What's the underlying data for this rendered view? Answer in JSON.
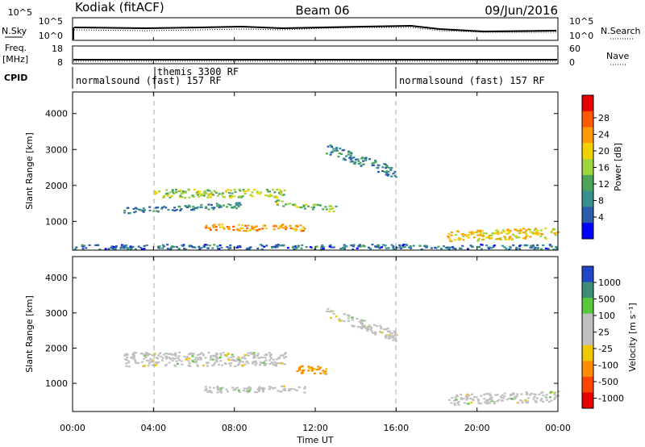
{
  "header": {
    "station": "Kodiak (fitACF)",
    "beam": "Beam 06",
    "date": "09/Jun/2016"
  },
  "panels": {
    "nsky_label": "N.Sky",
    "nsky_ticks": [
      "10^5",
      "10^0"
    ],
    "nsearch_label": "N.Search",
    "nsearch_ticks": [
      "10^5",
      "10^0"
    ],
    "freq_label": "Freq.",
    "freq_unit": "[MHz]",
    "freq_ticks": [
      "18",
      "8"
    ],
    "nave_label": "Nave",
    "nave_ticks": [
      "60",
      "0"
    ],
    "cpid_label": "CPID",
    "cpid_modes": [
      {
        "name": "normalsound (fast) 157 RF",
        "start": 0
      },
      {
        "name": "themis 3300 RF",
        "start": 4.1
      },
      {
        "name": "normalsound (fast) 157 RF",
        "start": 16
      }
    ]
  },
  "power_colorbar": {
    "label": "Power [dB]",
    "ticks": [
      "28",
      "24",
      "20",
      "16",
      "12",
      "8",
      "4"
    ],
    "colors": [
      "#e60000",
      "#ff5a00",
      "#ff9b00",
      "#f0d200",
      "#9fd53c",
      "#4aa55a",
      "#3a8f8f",
      "#2a5caa",
      "#0000ff"
    ]
  },
  "velocity_colorbar": {
    "label": "Velocity [m s⁻¹]",
    "ticks": [
      "1000",
      "500",
      "100",
      "25",
      "-25",
      "-100",
      "-500",
      "-1000"
    ],
    "colors": [
      "#2046c8",
      "#3c8c78",
      "#5ac83c",
      "#c0c0c0",
      "#c0c0c0",
      "#f0c800",
      "#ff8c00",
      "#ff4600",
      "#e60000"
    ]
  },
  "chart_data": {
    "type": "heatmap",
    "xlabel": "Time UT",
    "x_ticks": [
      "00:00",
      "04:00",
      "08:00",
      "12:00",
      "16:00",
      "20:00",
      "00:00"
    ],
    "xlim_hours": [
      0,
      24
    ],
    "ylabel": "Slant Range [km]",
    "y_ticks": [
      "1000",
      "2000",
      "3000",
      "4000"
    ],
    "ylim_km": [
      200,
      4600
    ],
    "power_echo_regions": [
      {
        "t0": 2.5,
        "t1": 8.5,
        "r_center": 1400,
        "r_halfwidth": 80,
        "r_slope": 25,
        "value_db": 8
      },
      {
        "t0": 4.0,
        "t1": 10.5,
        "r_center": 1800,
        "r_halfwidth": 120,
        "r_slope": 0,
        "value_db": 16
      },
      {
        "t0": 6.5,
        "t1": 11.5,
        "r_center": 850,
        "r_halfwidth": 90,
        "r_slope": 0,
        "value_db": 24
      },
      {
        "t0": 10.0,
        "t1": 13.0,
        "r_center": 1450,
        "r_halfwidth": 80,
        "r_slope": -60,
        "value_db": 14
      },
      {
        "t0": 12.5,
        "t1": 16.0,
        "r_center": 2700,
        "r_halfwidth": 150,
        "r_slope": -200,
        "value_db": 8
      },
      {
        "t0": 18.5,
        "t1": 24.0,
        "r_center": 650,
        "r_halfwidth": 150,
        "r_slope": 20,
        "value_db": 20
      },
      {
        "t0": 0.0,
        "t1": 24.0,
        "r_center": 300,
        "r_halfwidth": 80,
        "r_slope": 0,
        "value_db": 6
      }
    ],
    "velocity_echo_regions": [
      {
        "t0": 2.5,
        "t1": 10.5,
        "r_center": 1700,
        "r_halfwidth": 200,
        "r_slope": 0,
        "value_ms": 0
      },
      {
        "t0": 6.5,
        "t1": 11.5,
        "r_center": 850,
        "r_halfwidth": 90,
        "r_slope": 0,
        "value_ms": 0
      },
      {
        "t0": 11.0,
        "t1": 12.5,
        "r_center": 1400,
        "r_halfwidth": 120,
        "r_slope": 0,
        "value_ms": -200
      },
      {
        "t0": 12.5,
        "t1": 16.0,
        "r_center": 2700,
        "r_halfwidth": 150,
        "r_slope": -200,
        "value_ms": 0
      },
      {
        "t0": 18.5,
        "t1": 24.0,
        "r_center": 600,
        "r_halfwidth": 150,
        "r_slope": 20,
        "value_ms": 0
      }
    ]
  }
}
